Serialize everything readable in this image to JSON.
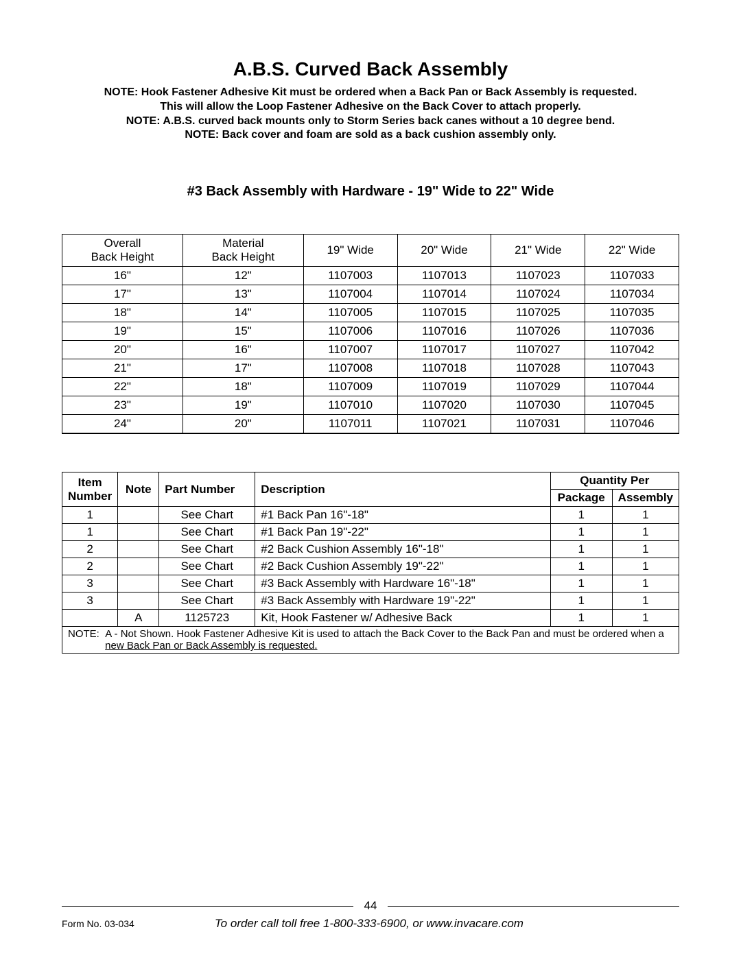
{
  "title": "A.B.S. Curved Back Assembly",
  "note_lines": [
    "NOTE: Hook Fastener Adhesive Kit must be ordered when a Back Pan or Back Assembly is requested.",
    "This will allow the Loop Fastener Adhesive on the Back Cover to attach properly.",
    "NOTE: A.B.S. curved back mounts only to Storm Series back canes without a 10 degree bend.",
    "NOTE: Back cover and foam are sold as a back cushion assembly only."
  ],
  "subheading": "#3 Back Assembly with Hardware - 19\" Wide to 22\" Wide",
  "chart": {
    "headers": [
      "Overall\nBack Height",
      "Material\nBack Height",
      "19\" Wide",
      "20\" Wide",
      "21\" Wide",
      "22\" Wide"
    ],
    "rows": [
      [
        "16\"",
        "12\"",
        "1107003",
        "1107013",
        "1107023",
        "1107033"
      ],
      [
        "17\"",
        "13\"",
        "1107004",
        "1107014",
        "1107024",
        "1107034"
      ],
      [
        "18\"",
        "14\"",
        "1107005",
        "1107015",
        "1107025",
        "1107035"
      ],
      [
        "19\"",
        "15\"",
        "1107006",
        "1107016",
        "1107026",
        "1107036"
      ],
      [
        "20\"",
        "16\"",
        "1107007",
        "1107017",
        "1107027",
        "1107042"
      ],
      [
        "21\"",
        "17\"",
        "1107008",
        "1107018",
        "1107028",
        "1107043"
      ],
      [
        "22\"",
        "18\"",
        "1107009",
        "1107019",
        "1107029",
        "1107044"
      ],
      [
        "23\"",
        "19\"",
        "1107010",
        "1107020",
        "1107030",
        "1107045"
      ],
      [
        "24\"",
        "20\"",
        "1107011",
        "1107021",
        "1107031",
        "1107046"
      ]
    ]
  },
  "parts": {
    "head_item": "Item\nNumber",
    "head_note": "Note",
    "head_partnum": "Part Number",
    "head_desc": "Description",
    "head_qty": "Quantity Per",
    "head_pkg": "Package",
    "head_asm": "Assembly",
    "rows": [
      {
        "item": "1",
        "note": "",
        "pn": "See Chart",
        "desc": "#1 Back Pan 16\"-18\"",
        "pkg": "1",
        "asm": "1"
      },
      {
        "item": "1",
        "note": "",
        "pn": "See Chart",
        "desc": "#1 Back Pan 19\"-22\"",
        "pkg": "1",
        "asm": "1"
      },
      {
        "item": "2",
        "note": "",
        "pn": "See Chart",
        "desc": "#2 Back Cushion Assembly 16\"-18\"",
        "pkg": "1",
        "asm": "1"
      },
      {
        "item": "2",
        "note": "",
        "pn": "See Chart",
        "desc": "#2 Back Cushion Assembly 19\"-22\"",
        "pkg": "1",
        "asm": "1"
      },
      {
        "item": "3",
        "note": "",
        "pn": "See Chart",
        "desc": "#3 Back Assembly with Hardware 16\"-18\"",
        "pkg": "1",
        "asm": "1"
      },
      {
        "item": "3",
        "note": "",
        "pn": "See Chart",
        "desc": "#3 Back Assembly with Hardware 19\"-22\"",
        "pkg": "1",
        "asm": "1"
      },
      {
        "item": "",
        "note": "A",
        "pn": "1125723",
        "desc": "Kit, Hook Fastener w/ Adhesive Back",
        "pkg": "1",
        "asm": "1"
      }
    ],
    "note_label": "NOTE:",
    "note_text_1": "A - Not Shown. Hook Fastener Adhesive Kit is used to attach the Back Cover to the Back Pan and must be ordered when a",
    "note_text_2": "new Back Pan or Back Assembly is requested."
  },
  "footer": {
    "page_num": "44",
    "form_no": "Form No. 03-034",
    "order_line": "To order call toll free 1-800-333-6900, or www.invacare.com"
  }
}
